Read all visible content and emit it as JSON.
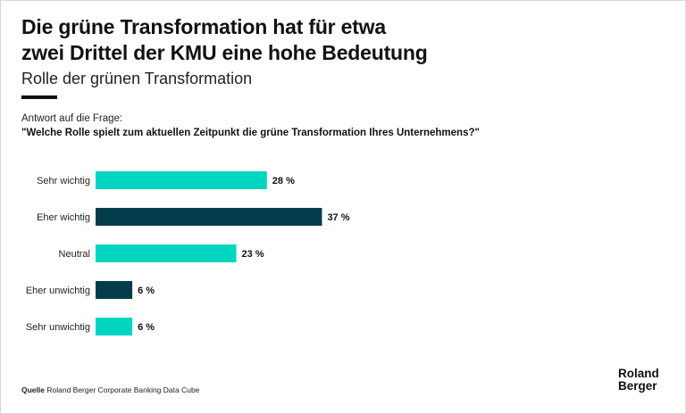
{
  "title_line1": "Die grüne Transformation hat für etwa",
  "title_line2": "zwei Drittel der KMU eine hohe Bedeutung",
  "subtitle": "Rolle der grünen Transformation",
  "question_lead": "Antwort auf die Frage:",
  "question_text": "\"Welche Rolle spielt zum aktuellen Zeitpunkt die grüne Transformation Ihres Unternehmens?\"",
  "source_label": "Quelle",
  "source_text": "Roland Berger Corporate Banking Data Cube",
  "logo_line1": "Roland",
  "logo_line2": "Berger",
  "chart_data": {
    "type": "bar",
    "orientation": "horizontal",
    "categories": [
      "Sehr wichtig",
      "Eher wichtig",
      "Neutral",
      "Eher unwichtig",
      "Sehr unwichtig"
    ],
    "values": [
      28,
      37,
      23,
      6,
      6
    ],
    "value_labels": [
      "28 %",
      "37 %",
      "23 %",
      "6 %",
      "6 %"
    ],
    "colors": [
      "#00d5c2",
      "#033d4b",
      "#00d5c2",
      "#033d4b",
      "#00d5c2"
    ],
    "unit": "%",
    "xlim": [
      0,
      100
    ],
    "grid": false,
    "legend": "none"
  }
}
